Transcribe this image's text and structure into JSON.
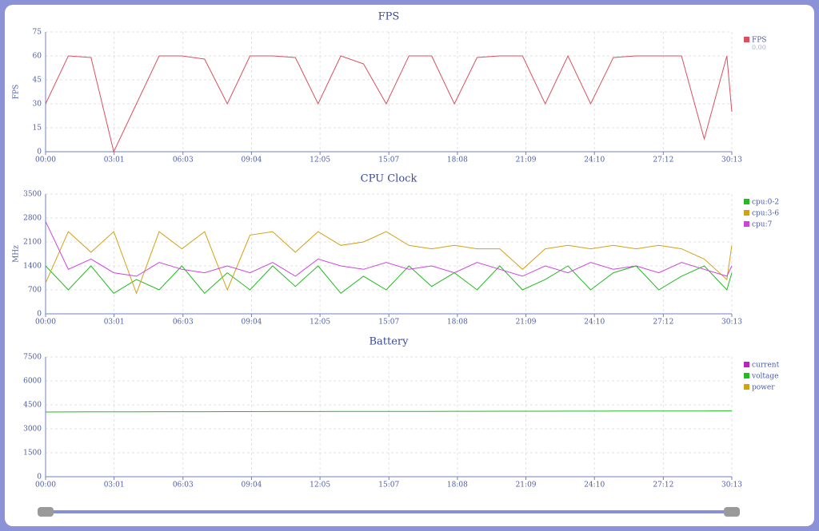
{
  "chart_data": [
    {
      "type": "line",
      "title": "FPS",
      "ylabel": "FPS",
      "legend_value": "0.00",
      "x": [
        0,
        60,
        120,
        180,
        240,
        300,
        360,
        420,
        480,
        540,
        600,
        660,
        720,
        780,
        840,
        900,
        960,
        1020,
        1080,
        1140,
        1200,
        1260,
        1320,
        1380,
        1440,
        1500,
        1560,
        1620,
        1680,
        1740,
        1800,
        1813
      ],
      "series": [
        {
          "name": "FPS",
          "color": "#d9505e",
          "values": [
            30,
            60,
            59,
            0,
            30,
            60,
            60,
            58,
            30,
            60,
            60,
            59,
            30,
            60,
            55,
            30,
            60,
            60,
            30,
            59,
            60,
            60,
            30,
            60,
            30,
            59,
            60,
            60,
            60,
            8,
            60,
            25
          ]
        }
      ],
      "xlim": [
        0,
        1813
      ],
      "xticks": [
        {
          "value": 0,
          "label": "00:00"
        },
        {
          "value": 181,
          "label": "03:01"
        },
        {
          "value": 363,
          "label": "06:03"
        },
        {
          "value": 544,
          "label": "09:04"
        },
        {
          "value": 725,
          "label": "12:05"
        },
        {
          "value": 907,
          "label": "15:07"
        },
        {
          "value": 1088,
          "label": "18:08"
        },
        {
          "value": 1269,
          "label": "21:09"
        },
        {
          "value": 1450,
          "label": "24:10"
        },
        {
          "value": 1632,
          "label": "27:12"
        },
        {
          "value": 1813,
          "label": "30:13"
        }
      ],
      "ylim": [
        0,
        75
      ],
      "yticks": [
        0,
        15,
        30,
        45,
        60,
        75
      ],
      "grid": true
    },
    {
      "type": "line",
      "title": "CPU Clock",
      "ylabel": "MHz",
      "x": [
        0,
        60,
        120,
        180,
        240,
        300,
        360,
        420,
        480,
        540,
        600,
        660,
        720,
        780,
        840,
        900,
        960,
        1020,
        1080,
        1140,
        1200,
        1260,
        1320,
        1380,
        1440,
        1500,
        1560,
        1620,
        1680,
        1740,
        1800,
        1813
      ],
      "series": [
        {
          "name": "cpu:0-2",
          "color": "#22bb22",
          "values": [
            1400,
            700,
            1400,
            600,
            1000,
            700,
            1400,
            600,
            1200,
            700,
            1400,
            800,
            1400,
            600,
            1100,
            700,
            1400,
            800,
            1200,
            700,
            1400,
            700,
            1000,
            1400,
            700,
            1200,
            1400,
            700,
            1100,
            1400,
            700,
            1200
          ]
        },
        {
          "name": "cpu:3-6",
          "color": "#d4a017",
          "values": [
            900,
            2400,
            1800,
            2400,
            600,
            2400,
            1900,
            2400,
            700,
            2300,
            2400,
            1800,
            2400,
            2000,
            2100,
            2400,
            2000,
            1900,
            2000,
            1900,
            1900,
            1300,
            1900,
            2000,
            1900,
            2000,
            1900,
            2000,
            1900,
            1600,
            1000,
            2000
          ]
        },
        {
          "name": "cpu:7",
          "color": "#cc44dd",
          "values": [
            2700,
            1300,
            1600,
            1200,
            1100,
            1500,
            1300,
            1200,
            1400,
            1200,
            1500,
            1100,
            1600,
            1400,
            1300,
            1500,
            1300,
            1400,
            1200,
            1500,
            1300,
            1100,
            1400,
            1200,
            1500,
            1300,
            1400,
            1200,
            1500,
            1300,
            1100,
            1400
          ]
        }
      ],
      "xlim": [
        0,
        1813
      ],
      "xticks": [
        {
          "value": 0,
          "label": "00:00"
        },
        {
          "value": 181,
          "label": "03:01"
        },
        {
          "value": 363,
          "label": "06:03"
        },
        {
          "value": 544,
          "label": "09:04"
        },
        {
          "value": 725,
          "label": "12:05"
        },
        {
          "value": 907,
          "label": "15:07"
        },
        {
          "value": 1088,
          "label": "18:08"
        },
        {
          "value": 1269,
          "label": "21:09"
        },
        {
          "value": 1450,
          "label": "24:10"
        },
        {
          "value": 1632,
          "label": "27:12"
        },
        {
          "value": 1813,
          "label": "30:13"
        }
      ],
      "ylim": [
        0,
        3500
      ],
      "yticks": [
        0,
        700,
        1400,
        2100,
        2800,
        3500
      ],
      "grid": true
    },
    {
      "type": "line",
      "title": "Battery",
      "x": [
        0,
        60,
        120,
        180,
        240,
        300,
        360,
        420,
        480,
        540,
        600,
        660,
        720,
        780,
        840,
        900,
        960,
        1020,
        1080,
        1140,
        1200,
        1260,
        1320,
        1380,
        1440,
        1500,
        1560,
        1620,
        1680,
        1740,
        1800,
        1813
      ],
      "series": [
        {
          "name": "current",
          "color": "#c020c0"
        },
        {
          "name": "voltage",
          "color": "#22bb22",
          "values": [
            4050,
            4055,
            4060,
            4062,
            4065,
            4068,
            4070,
            4072,
            4074,
            4076,
            4078,
            4080,
            4082,
            4084,
            4085,
            4086,
            4090,
            4092,
            4094,
            4096,
            4098,
            4100,
            4102,
            4104,
            4106,
            4108,
            4110,
            4112,
            4114,
            4116,
            4118,
            4120
          ]
        },
        {
          "name": "power",
          "color": "#d4a017"
        }
      ],
      "xlim": [
        0,
        1813
      ],
      "xticks": [
        {
          "value": 0,
          "label": "00:00"
        },
        {
          "value": 181,
          "label": "03:01"
        },
        {
          "value": 363,
          "label": "06:03"
        },
        {
          "value": 544,
          "label": "09:04"
        },
        {
          "value": 725,
          "label": "12:05"
        },
        {
          "value": 907,
          "label": "15:07"
        },
        {
          "value": 1088,
          "label": "18:08"
        },
        {
          "value": 1269,
          "label": "21:09"
        },
        {
          "value": 1450,
          "label": "24:10"
        },
        {
          "value": 1632,
          "label": "27:12"
        },
        {
          "value": 1813,
          "label": "30:13"
        }
      ],
      "ylim": [
        0,
        7500
      ],
      "yticks": [
        0,
        1500,
        3000,
        4500,
        6000,
        7500
      ],
      "grid": true
    }
  ]
}
